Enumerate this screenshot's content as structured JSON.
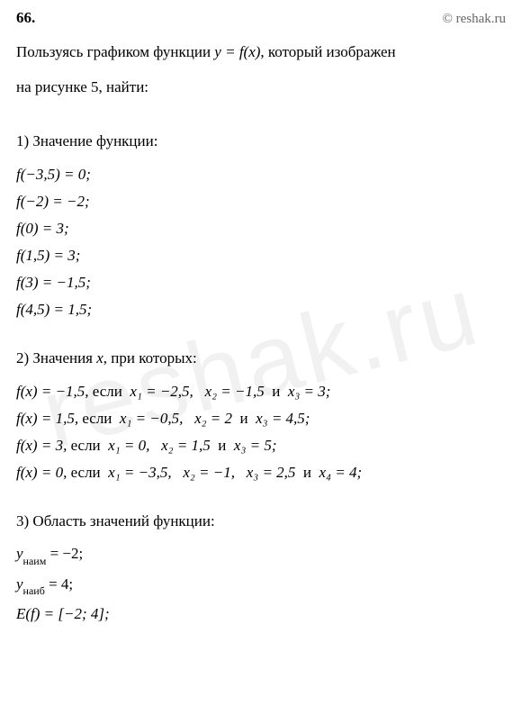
{
  "watermark": "reshak.ru",
  "header": {
    "number": "66.",
    "credit": "© reshak.ru"
  },
  "intro": {
    "line1_prefix": "Пользуясь графиком функции ",
    "line1_formula": "y = f(x)",
    "line1_suffix": ", который изображен",
    "line2": "на рисунке 5, найти:"
  },
  "section1": {
    "title": "1) Значение функции:",
    "items": [
      "f(−3,5) = 0;",
      "f(−2) = −2;",
      "f(0) = 3;",
      "f(1,5) = 3;",
      "f(3) = −1,5;",
      "f(4,5) = 1,5;"
    ]
  },
  "section2": {
    "title_prefix": "2) Значения ",
    "title_var": "x",
    "title_suffix": ", при которых:",
    "items": [
      {
        "fx": "f(x) = −1,5,",
        "word": "если",
        "x1": "x₁ = −2,5,",
        "x2": "x₂ = −1,5",
        "conj": "и",
        "x3": "x₃ = 3;"
      },
      {
        "fx": "f(x) = 1,5,",
        "word": "если",
        "x1": "x₁ = −0,5,",
        "x2": "x₂ = 2",
        "conj": "и",
        "x3": "x₃ = 4,5;"
      },
      {
        "fx": "f(x) = 3,",
        "word": "если",
        "x1": "x₁ = 0,",
        "x2": "x₂ = 1,5",
        "conj": "и",
        "x3": "x₃ = 5;"
      },
      {
        "fx": "f(x) = 0,",
        "word": "если",
        "x1": "x₁ = −3,5,",
        "x2": "x₂ = −1,",
        "x3p": "x₃ = 2,5",
        "conj": "и",
        "x4": "x₄ = 4;"
      }
    ]
  },
  "section3": {
    "title": "3) Область значений функции:",
    "ymin_label": "y",
    "ymin_sub": "наим",
    "ymin_val": " = −2;",
    "ymax_label": "y",
    "ymax_sub": "наиб",
    "ymax_val": " = 4;",
    "range": "E(f) = [−2;  4];"
  },
  "colors": {
    "text": "#000000",
    "credit": "#666666",
    "background": "#ffffff",
    "watermark": "rgba(0,0,0,0.055)"
  },
  "typography": {
    "body_fontsize": 17,
    "number_fontsize": 17,
    "credit_fontsize": 15,
    "watermark_fontsize": 110
  }
}
